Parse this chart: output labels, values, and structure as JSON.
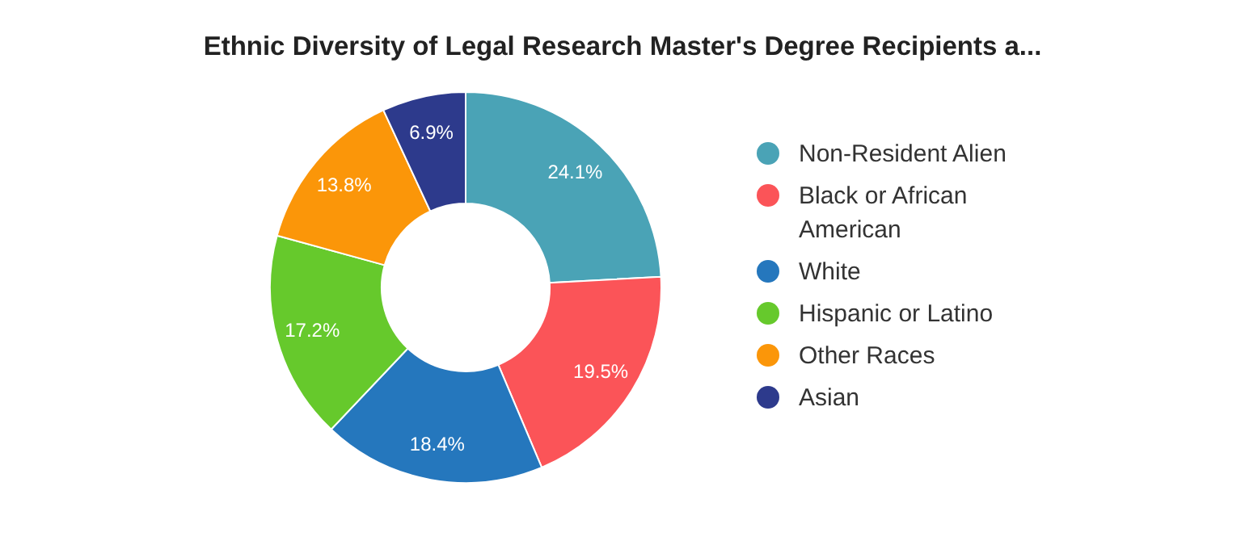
{
  "chart_data": {
    "type": "donut",
    "title": "Ethnic Diversity of Legal Research Master's Degree Recipients a...",
    "categories": [
      "Non-Resident Alien",
      "Black or African American",
      "White",
      "Hispanic or Latino",
      "Other Races",
      "Asian"
    ],
    "values": [
      24.1,
      19.5,
      18.4,
      17.2,
      13.8,
      6.9
    ],
    "colors": [
      "#4aa3b6",
      "#fb5458",
      "#2577bd",
      "#66c92c",
      "#fb9609",
      "#2d3a8c"
    ],
    "value_labels": [
      "24.1%",
      "19.5%",
      "18.4%",
      "17.2%",
      "13.8%",
      "6.9%"
    ],
    "legend": "right"
  }
}
